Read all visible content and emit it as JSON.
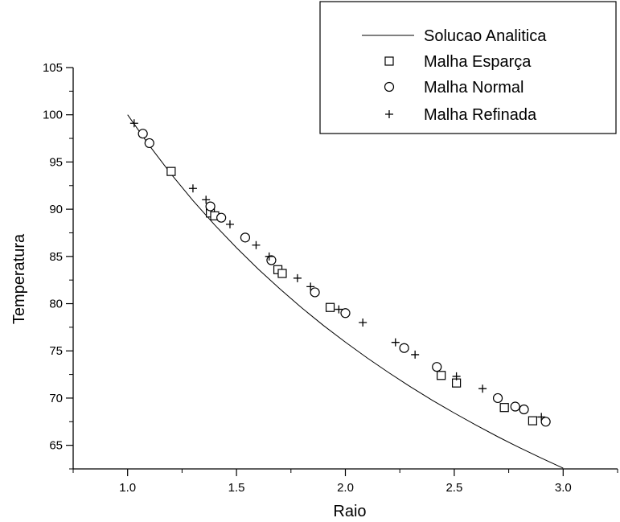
{
  "chart_data": {
    "type": "scatter",
    "title": "",
    "xlabel": "Raio",
    "ylabel": "Temperatura",
    "xlim": [
      0.75,
      3.25
    ],
    "ylim": [
      62.5,
      105
    ],
    "xticks": [
      "1.0",
      "1.5",
      "2.0",
      "2.5",
      "3.0"
    ],
    "yticks": [
      "65",
      "70",
      "75",
      "80",
      "85",
      "90",
      "95",
      "100",
      "105"
    ],
    "xtick_values": [
      1.0,
      1.5,
      2.0,
      2.5,
      3.0
    ],
    "ytick_values": [
      65,
      70,
      75,
      80,
      85,
      90,
      95,
      100,
      105
    ],
    "grid": false,
    "legend_position": "top-right",
    "series": [
      {
        "name": "Solucao Analitica",
        "kind": "line",
        "x": [
          1.0,
          1.1,
          1.2,
          1.3,
          1.4,
          1.5,
          1.6,
          1.7,
          1.8,
          1.9,
          2.0,
          2.1,
          2.2,
          2.3,
          2.4,
          2.5,
          2.6,
          2.7,
          2.8,
          2.9,
          3.0
        ],
        "y": [
          100.0,
          96.73,
          93.71,
          90.92,
          88.33,
          85.92,
          83.66,
          81.54,
          79.55,
          77.68,
          75.92,
          74.25,
          72.68,
          71.18,
          69.76,
          68.42,
          67.13,
          65.91,
          64.75,
          63.64,
          62.58
        ]
      },
      {
        "name": "Malha Esparça",
        "marker": "square",
        "x": [
          1.2,
          1.38,
          1.4,
          1.69,
          1.71,
          1.93,
          2.44,
          2.51,
          2.73,
          2.86
        ],
        "y": [
          94.0,
          89.6,
          89.3,
          83.6,
          83.2,
          79.6,
          72.4,
          71.6,
          69.0,
          67.6
        ]
      },
      {
        "name": "Malha Normal",
        "marker": "circle",
        "x": [
          1.07,
          1.1,
          1.38,
          1.43,
          1.54,
          1.66,
          1.86,
          2.0,
          2.27,
          2.42,
          2.7,
          2.78,
          2.82,
          2.92
        ],
        "y": [
          98.0,
          97.0,
          90.3,
          89.1,
          87.0,
          84.6,
          81.2,
          79.0,
          75.3,
          73.3,
          70.0,
          69.1,
          68.8,
          67.5
        ]
      },
      {
        "name": "Malha Refinada",
        "marker": "plus",
        "x": [
          1.03,
          1.3,
          1.36,
          1.47,
          1.59,
          1.65,
          1.78,
          1.84,
          1.97,
          2.08,
          2.23,
          2.32,
          2.51,
          2.63,
          2.9
        ],
        "y": [
          99.1,
          92.2,
          91.0,
          88.4,
          86.2,
          85.0,
          82.7,
          81.8,
          79.4,
          78.0,
          75.9,
          74.6,
          72.3,
          71.0,
          68.0
        ]
      }
    ]
  }
}
